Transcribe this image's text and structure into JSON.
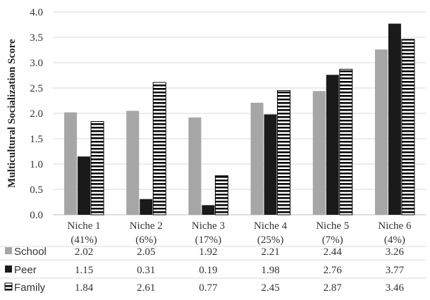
{
  "chart_data": {
    "type": "bar",
    "ylabel": "Multicultural Socialization Score",
    "xlabel": "",
    "ylim": [
      0,
      4.0
    ],
    "yticks": [
      "0.0",
      "0.5",
      "1.0",
      "1.5",
      "2.0",
      "2.5",
      "3.0",
      "3.5",
      "4.0"
    ],
    "categories": [
      [
        "Niche 1",
        "(41%)"
      ],
      [
        "Niche 2",
        "(6%)"
      ],
      [
        "Niche 3",
        "(17%)"
      ],
      [
        "Niche 4",
        "(25%)"
      ],
      [
        "Niche 5",
        "(7%)"
      ],
      [
        "Niche 6",
        "(4%)"
      ]
    ],
    "grid": true,
    "legend": "data-table",
    "series": [
      {
        "name": "School",
        "values": [
          2.02,
          2.05,
          1.92,
          2.21,
          2.44,
          3.26
        ],
        "color": "#a6a6a6",
        "pattern": "solid"
      },
      {
        "name": "Peer",
        "values": [
          1.15,
          0.31,
          0.19,
          1.98,
          2.76,
          3.77
        ],
        "color": "#1a1a1a",
        "pattern": "solid"
      },
      {
        "name": "Family",
        "values": [
          1.84,
          2.61,
          0.77,
          2.45,
          2.87,
          3.46
        ],
        "color": "#000000",
        "pattern": "horizontal-stripes"
      }
    ],
    "table_values": [
      [
        "2.02",
        "2.05",
        "1.92",
        "2.21",
        "2.44",
        "3.26"
      ],
      [
        "1.15",
        "0.31",
        "0.19",
        "1.98",
        "2.76",
        "3.77"
      ],
      [
        "1.84",
        "2.61",
        "0.77",
        "2.45",
        "2.87",
        "3.46"
      ]
    ]
  }
}
